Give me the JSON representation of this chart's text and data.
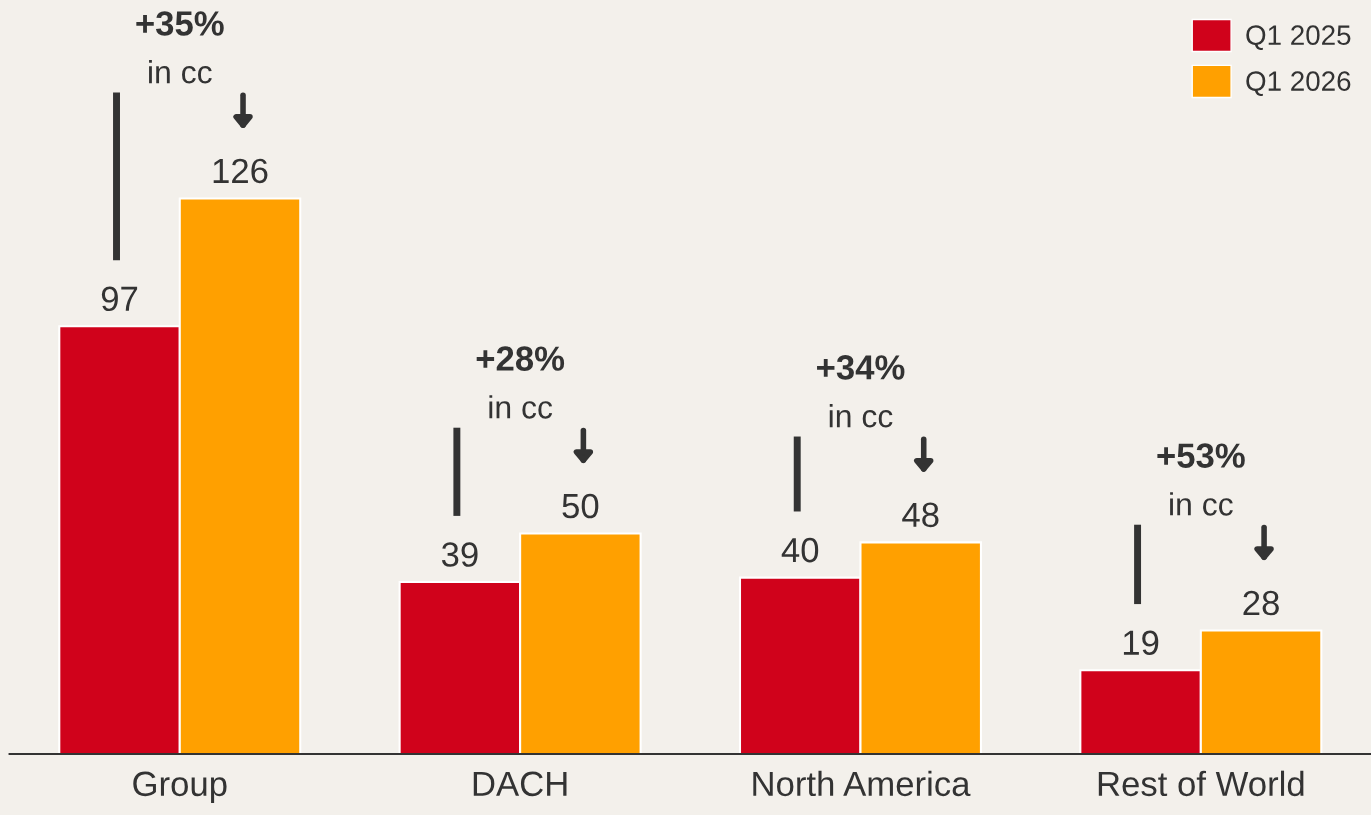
{
  "chart_data": {
    "type": "bar",
    "categories": [
      "Group",
      "DACH",
      "North America",
      "Rest of World"
    ],
    "series": [
      {
        "name": "Q1 2025",
        "color": "#d0021b",
        "values": [
          97,
          39,
          40,
          19
        ]
      },
      {
        "name": "Q1 2026",
        "color": "#ffa000",
        "values": [
          126,
          50,
          48,
          28
        ]
      }
    ],
    "ylim": [
      0,
      171
    ],
    "tick_labels": "x",
    "data_labels": true,
    "grid": false,
    "legend": "top right",
    "annotations": [
      "+35%\nin cc",
      "+28%\nin cc",
      "+34%\nin cc",
      "+53%\nin cc"
    ]
  }
}
